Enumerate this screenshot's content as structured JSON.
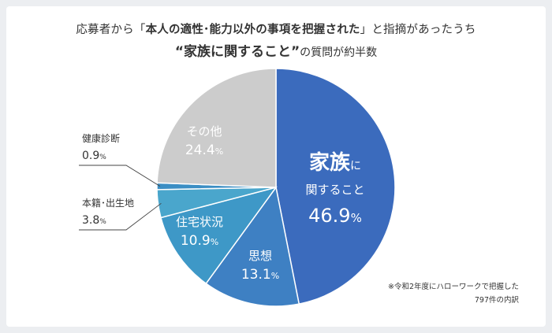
{
  "title": {
    "line1_prefix": "応募者から「",
    "line1_bold": "本人の適性･能力以外の事項を把握された",
    "line1_suffix": "」と指摘があったうち",
    "line2_bold": "“家族に関すること”",
    "line2_suffix": "の質問が約半数"
  },
  "chart_data": {
    "type": "pie",
    "title": "応募者から「本人の適性･能力以外の事項を把握された」と指摘があったうち“家族に関すること”の質問が約半数",
    "slices": [
      {
        "label": "家族に関すること",
        "value": 46.9,
        "color": "#3b6bbd"
      },
      {
        "label": "思想",
        "value": 13.1,
        "color": "#3e80c3"
      },
      {
        "label": "住宅状況",
        "value": 10.9,
        "color": "#3e98c7"
      },
      {
        "label": "本籍･出生地",
        "value": 3.8,
        "color": "#4aa6cc"
      },
      {
        "label": "健康診断",
        "value": 0.9,
        "color": "#3b8ec4"
      },
      {
        "label": "その他",
        "value": 24.4,
        "color": "#cccccc"
      }
    ],
    "value_suffix": "%",
    "note": [
      "※令和2年度にハローワークで把握した",
      "797件の内訳"
    ]
  }
}
